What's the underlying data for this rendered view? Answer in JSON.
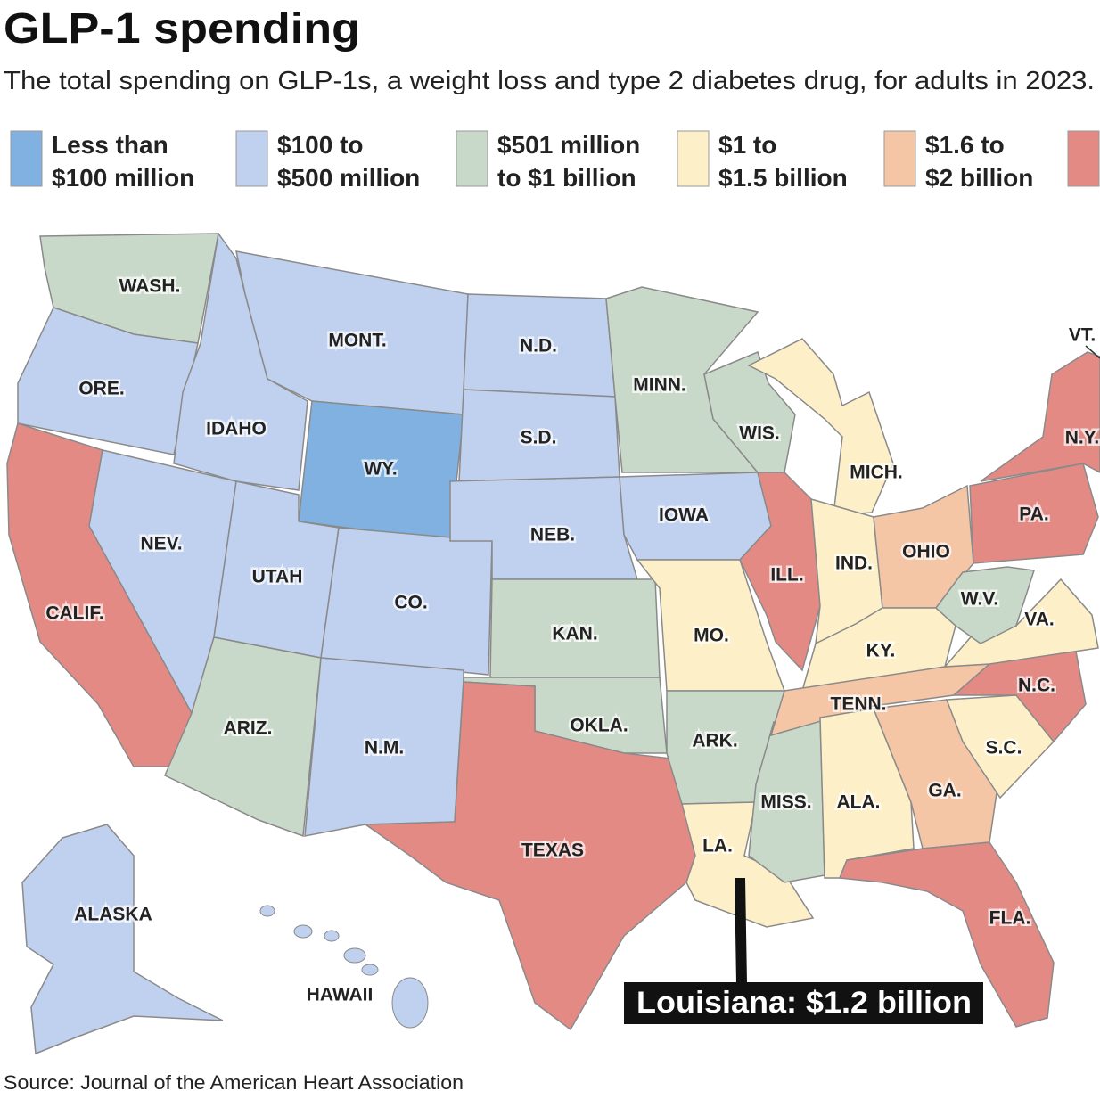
{
  "header": {
    "title": "GLP-1 spending",
    "subtitle": "The total spending on GLP-1s, a weight loss and type 2 diabetes drug, for adults in 2023."
  },
  "legend": [
    {
      "lines": [
        "Less than",
        "$100 million"
      ],
      "color": "#80b1e0"
    },
    {
      "lines": [
        "$100 to",
        "$500 million"
      ],
      "color": "#bfd1ee"
    },
    {
      "lines": [
        "$501 million",
        "to $1 billion"
      ],
      "color": "#c9d9c9"
    },
    {
      "lines": [
        "$1 to",
        "$1.5 billion"
      ],
      "color": "#fdf0c9"
    },
    {
      "lines": [
        "$1.6 to",
        "$2 billion"
      ],
      "color": "#f4c6a5"
    },
    {
      "color": "#e38a85"
    }
  ],
  "states": [
    {
      "label": "WASH.",
      "color": "#c9d9c9"
    },
    {
      "label": "ORE.",
      "color": "#bfd1ee"
    },
    {
      "label": "CALIF.",
      "color": "#e38a85"
    },
    {
      "label": "NEV.",
      "color": "#bfd1ee"
    },
    {
      "label": "IDAHO",
      "color": "#bfd1ee"
    },
    {
      "label": "MONT.",
      "color": "#bfd1ee"
    },
    {
      "label": "WY.",
      "color": "#80b1e0"
    },
    {
      "label": "UTAH",
      "color": "#bfd1ee"
    },
    {
      "label": "CO.",
      "color": "#bfd1ee"
    },
    {
      "label": "ARIZ.",
      "color": "#c9d9c9"
    },
    {
      "label": "N.M.",
      "color": "#bfd1ee"
    },
    {
      "label": "N.D.",
      "color": "#bfd1ee"
    },
    {
      "label": "S.D.",
      "color": "#bfd1ee"
    },
    {
      "label": "NEB.",
      "color": "#bfd1ee"
    },
    {
      "label": "KAN.",
      "color": "#c9d9c9"
    },
    {
      "label": "OKLA.",
      "color": "#c9d9c9"
    },
    {
      "label": "TEXAS",
      "color": "#e38a85"
    },
    {
      "label": "MINN.",
      "color": "#c9d9c9"
    },
    {
      "label": "IOWA",
      "color": "#bfd1ee"
    },
    {
      "label": "MO.",
      "color": "#fdf0c9"
    },
    {
      "label": "ARK.",
      "color": "#c9d9c9"
    },
    {
      "label": "LA.",
      "color": "#fdf0c9"
    },
    {
      "label": "MISS.",
      "color": "#c9d9c9"
    },
    {
      "label": "WIS.",
      "color": "#c9d9c9"
    },
    {
      "label": "ILL.",
      "color": "#e38a85"
    },
    {
      "label": "MICH.",
      "color": "#fdf0c9"
    },
    {
      "label": "IND.",
      "color": "#fdf0c9"
    },
    {
      "label": "OHIO",
      "color": "#f4c6a5"
    },
    {
      "label": "KY.",
      "color": "#fdf0c9"
    },
    {
      "label": "TENN.",
      "color": "#f4c6a5"
    },
    {
      "label": "ALA.",
      "color": "#fdf0c9"
    },
    {
      "label": "GA.",
      "color": "#f4c6a5"
    },
    {
      "label": "FLA.",
      "color": "#e38a85"
    },
    {
      "label": "S.C.",
      "color": "#fdf0c9"
    },
    {
      "label": "N.C.",
      "color": "#e38a85"
    },
    {
      "label": "VA.",
      "color": "#fdf0c9"
    },
    {
      "label": "W.V.",
      "color": "#c9d9c9"
    },
    {
      "label": "PA.",
      "color": "#e38a85"
    },
    {
      "label": "N.Y.",
      "color": "#e38a85"
    },
    {
      "label": "ALASKA",
      "color": "#bfd1ee"
    },
    {
      "label": "HAWAII",
      "color": "#bfd1ee"
    },
    {
      "label": "VT."
    }
  ],
  "annotation": "Louisiana: $1.2 billion",
  "source": "Source: Journal of the American Heart Association"
}
